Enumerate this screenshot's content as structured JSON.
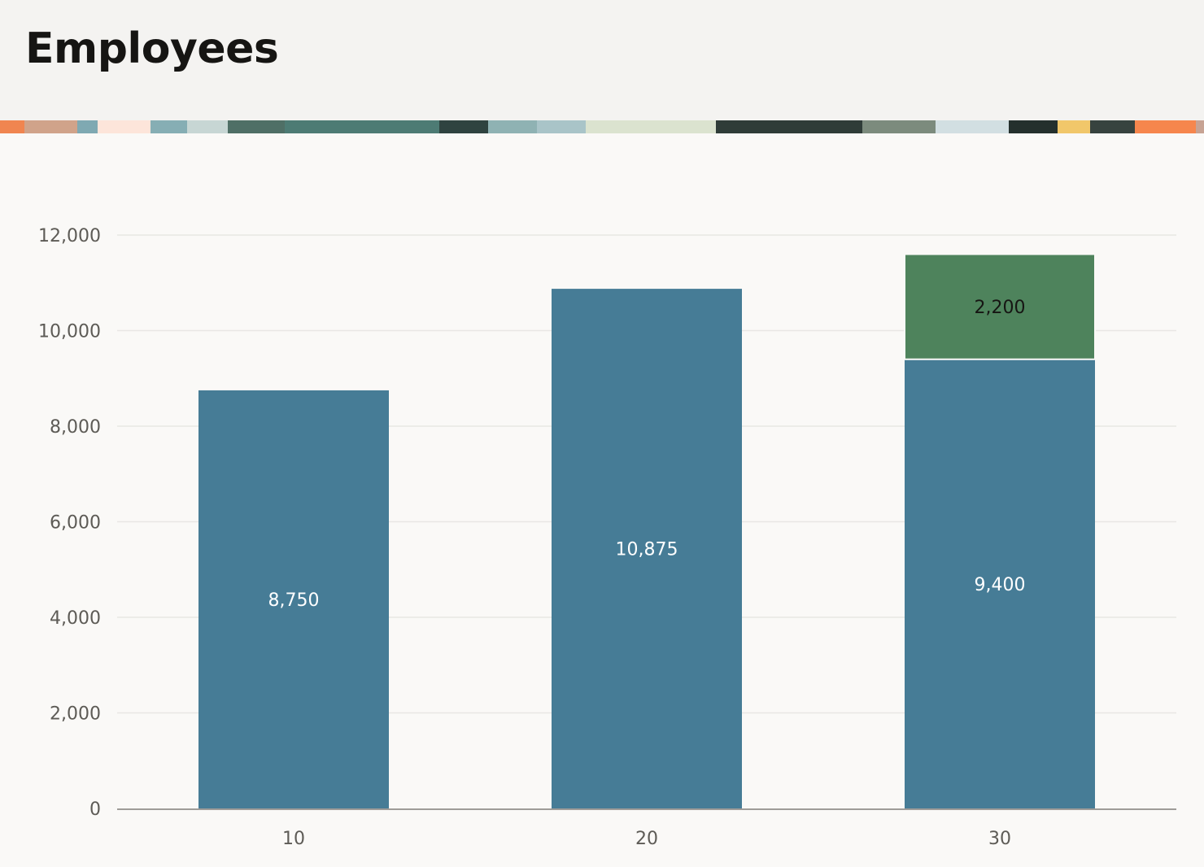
{
  "header": {
    "title": "Employees"
  },
  "colors": {
    "series_primary": "#467c96",
    "series_secondary": "#4e835c",
    "grid": "#e8e7e4",
    "axis_text": "#5d5b56"
  },
  "chart_data": {
    "type": "bar",
    "stacked": true,
    "categories": [
      "10",
      "20",
      "30"
    ],
    "series": [
      {
        "values": [
          8750,
          10875,
          9400
        ],
        "color": "#467c96",
        "label_color": "#ffffff"
      },
      {
        "values": [
          0,
          0,
          2200
        ],
        "color": "#4e835c",
        "label_color": "#161513"
      }
    ],
    "data_labels": [
      [
        "8,750",
        "10,875",
        "9,400"
      ],
      [
        "",
        "",
        "2,200"
      ]
    ],
    "y_ticks": [
      "0",
      "2,000",
      "4,000",
      "6,000",
      "8,000",
      "10,000",
      "12,000"
    ],
    "y_tick_values": [
      0,
      2000,
      4000,
      6000,
      8000,
      10000,
      12000
    ],
    "ylim": [
      0,
      12000
    ],
    "grid": true,
    "title": "",
    "xlabel": "",
    "ylabel": ""
  }
}
